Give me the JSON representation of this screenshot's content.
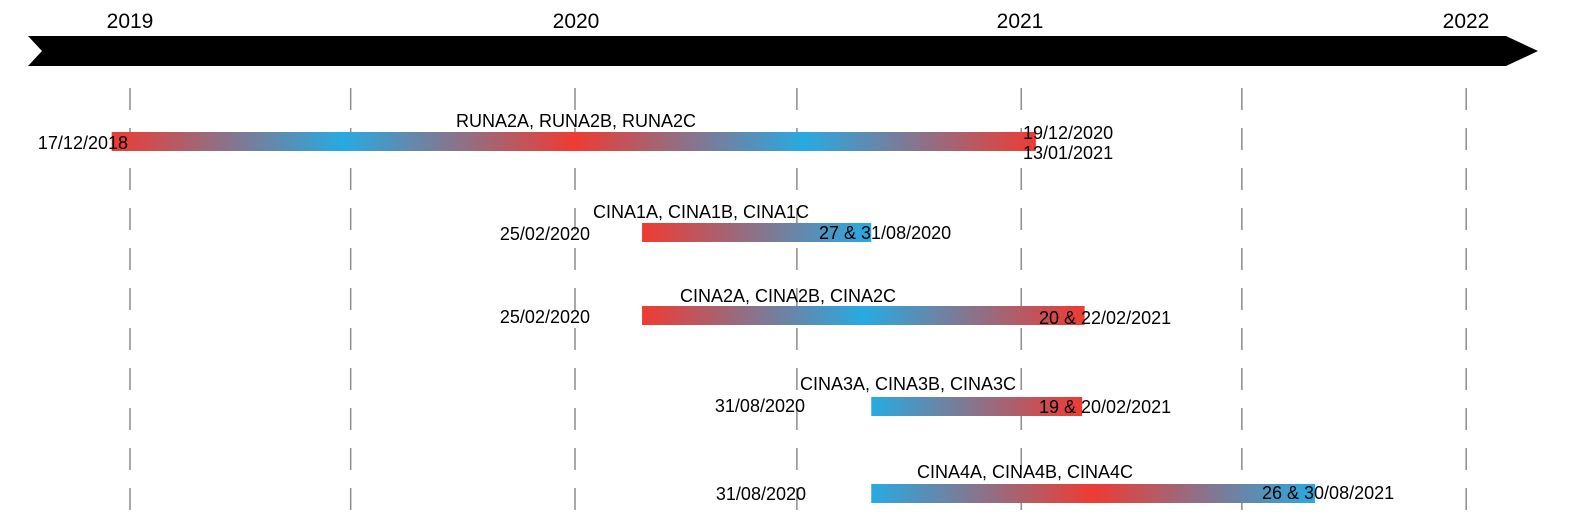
{
  "colors": {
    "arrow": "#000000",
    "warm": "#ee3b33",
    "cool": "#27aae1",
    "gridline": "#8c8c8c",
    "text": "#000000"
  },
  "years": [
    "2019",
    "2020",
    "2021",
    "2022"
  ],
  "gridline_dates": [
    "2019-01-01",
    "2019-07-01",
    "2020-01-01",
    "2020-07-01",
    "2021-01-01",
    "2021-07-01",
    "2022-01-01"
  ],
  "bars": [
    {
      "label": "RUNA2A, RUNA2B, RUNA2C",
      "start_label": "17/12/2018",
      "end_label_lines": [
        "19/12/2020",
        "13/01/2021"
      ],
      "start": "2018-12-17",
      "end": "2021-01-13",
      "gradient": [
        "warm",
        "cool",
        "warm",
        "cool",
        "warm"
      ]
    },
    {
      "label": "CINA1A, CINA1B, CINA1C",
      "start_label": "25/02/2020",
      "end_label_lines": [
        "27 & 31/08/2020"
      ],
      "start": "2020-02-25",
      "end": "2020-08-31",
      "gradient": [
        "warm",
        "cool"
      ]
    },
    {
      "label": "CINA2A, CINA2B, CINA2C",
      "start_label": "25/02/2020",
      "end_label_lines": [
        "20 & 22/02/2021"
      ],
      "start": "2020-02-25",
      "end": "2021-02-22",
      "gradient": [
        "warm",
        "cool",
        "warm"
      ]
    },
    {
      "label": "CINA3A, CINA3B, CINA3C",
      "start_label": "31/08/2020",
      "end_label_lines": [
        "19 & 20/02/2021"
      ],
      "start": "2020-08-31",
      "end": "2021-02-20",
      "gradient": [
        "cool",
        "warm"
      ]
    },
    {
      "label": "CINA4A, CINA4B, CINA4C",
      "start_label": "31/08/2020",
      "end_label_lines": [
        "26 & 30/08/2021"
      ],
      "start": "2020-08-31",
      "end": "2021-08-30",
      "gradient": [
        "cool",
        "warm",
        "cool"
      ]
    }
  ]
}
